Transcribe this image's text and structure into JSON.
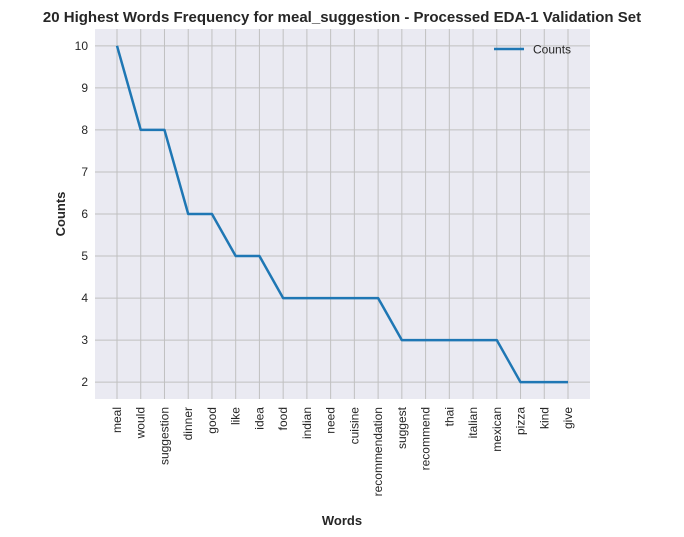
{
  "chart_data": {
    "type": "line",
    "title": "20 Highest Words Frequency for meal_suggestion - Processed EDA-1 Validation Set",
    "xlabel": "Words",
    "ylabel": "Counts",
    "categories": [
      "meal",
      "would",
      "suggestion",
      "dinner",
      "good",
      "like",
      "idea",
      "food",
      "indian",
      "need",
      "cuisine",
      "recommendation",
      "suggest",
      "recommend",
      "thai",
      "italian",
      "mexican",
      "pizza",
      "kind",
      "give"
    ],
    "series": [
      {
        "name": "Counts",
        "values": [
          10,
          8,
          8,
          6,
          6,
          5,
          5,
          4,
          4,
          4,
          4,
          4,
          3,
          3,
          3,
          3,
          3,
          2,
          2,
          2
        ],
        "color": "#1f77b4"
      }
    ],
    "yticks": [
      2,
      3,
      4,
      5,
      6,
      7,
      8,
      9,
      10
    ],
    "ylim": [
      1.6,
      10.4
    ],
    "grid": true,
    "legend_position": "top-right",
    "colors": {
      "plot_background": "#eaeaf2",
      "grid": "#c0c0c0"
    }
  }
}
